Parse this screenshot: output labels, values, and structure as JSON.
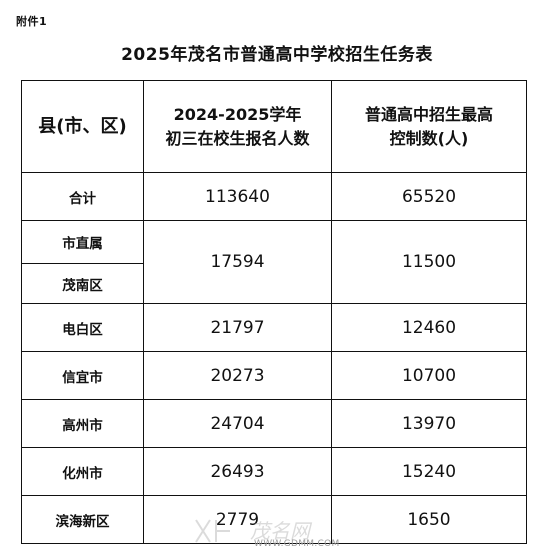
{
  "attachment_label": "附件1",
  "title": "2025年茂名市普通高中学校招生任务表",
  "table": {
    "headers": {
      "county": "县(市、区)",
      "enrolled_line1": "2024-2025学年",
      "enrolled_line2": "初三在校生报名人数",
      "quota_line1": "普通高中招生最高",
      "quota_line2": "控制数(人)"
    },
    "total": {
      "name": "合计",
      "enrolled": "113640",
      "quota": "65520"
    },
    "merged": {
      "names": [
        "市直属",
        "茂南区"
      ],
      "enrolled": "17594",
      "quota": "11500"
    },
    "rows": [
      {
        "name": "电白区",
        "enrolled": "21797",
        "quota": "12460"
      },
      {
        "name": "信宜市",
        "enrolled": "20273",
        "quota": "10700"
      },
      {
        "name": "高州市",
        "enrolled": "24704",
        "quota": "13970"
      },
      {
        "name": "化州市",
        "enrolled": "26493",
        "quota": "15240"
      },
      {
        "name": "滨海新区",
        "enrolled": "2779",
        "quota": "1650"
      }
    ]
  },
  "watermark": {
    "text": "茂名网",
    "url": "WWW.GDMM.COM"
  }
}
